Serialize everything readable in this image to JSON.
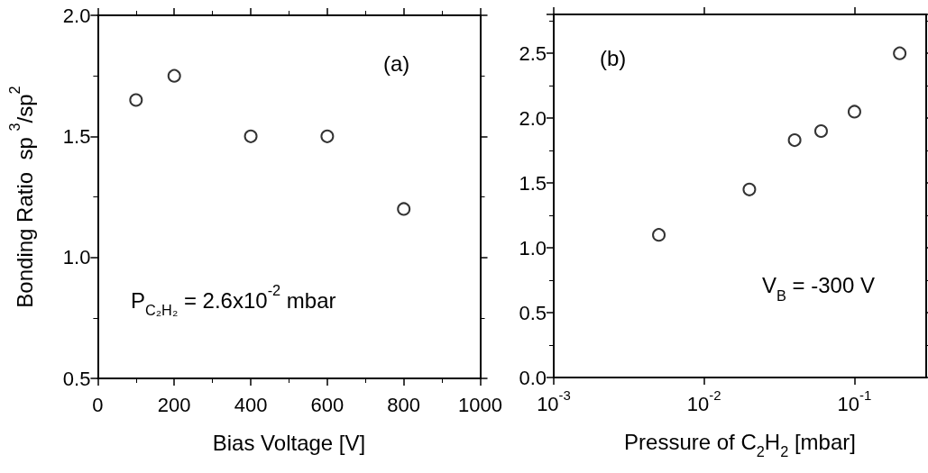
{
  "chart_data": [
    {
      "type": "scatter",
      "xlabel": "Bias Voltage [V]",
      "ylabel": "Bonding Ratio  sp $^{3}$/sp$^{2}$",
      "xlim": [
        0,
        1000
      ],
      "xticks": [
        0,
        200,
        400,
        600,
        800,
        1000
      ],
      "ylim": [
        0.5,
        2.0
      ],
      "yticks": [
        {
          "value": 0.5,
          "label": "0.5"
        },
        {
          "value": 1.0,
          "label": "1.0"
        },
        {
          "value": 1.5,
          "label": "1.5"
        },
        {
          "value": 2.0,
          "label": "2.0"
        }
      ],
      "marker": "circle",
      "color": "#000000",
      "x": [
        100,
        200,
        400,
        600,
        800
      ],
      "values": [
        1.65,
        1.75,
        1.5,
        1.5,
        1.2
      ],
      "annotations": [
        "(a)",
        "P$_{C₂H₂}$ = 2.6x10$^{-2}$ mbar"
      ]
    },
    {
      "type": "scatter",
      "xlabel": "Pressure of C$_{2}$H$_{2}$ [mbar]",
      "xlim": [
        0.001,
        0.3
      ],
      "xticks": [
        {
          "value": 0.001,
          "label": "10$^{-3}$"
        },
        {
          "value": 0.01,
          "label": "10$^{-2}$"
        },
        {
          "value": 0.1,
          "label": "10$^{-1}$"
        }
      ],
      "ylim": [
        0,
        2.8
      ],
      "yticks": [
        {
          "value": 0,
          "label": "0.0"
        },
        {
          "value": 0.5,
          "label": "0.5"
        },
        {
          "value": 1.0,
          "label": "1.0"
        },
        {
          "value": 1.5,
          "label": "1.5"
        },
        {
          "value": 2.0,
          "label": "2.0"
        },
        {
          "value": 2.5,
          "label": "2.5"
        }
      ],
      "log": "x",
      "marker": "circle",
      "color": "#000000",
      "x": [
        0.005,
        0.02,
        0.04,
        0.06,
        0.1,
        0.2
      ],
      "values": [
        1.1,
        1.45,
        1.83,
        1.9,
        2.05,
        2.5
      ],
      "annotations": [
        "(b)",
        "V$_{B}$ = -300 V"
      ]
    }
  ]
}
